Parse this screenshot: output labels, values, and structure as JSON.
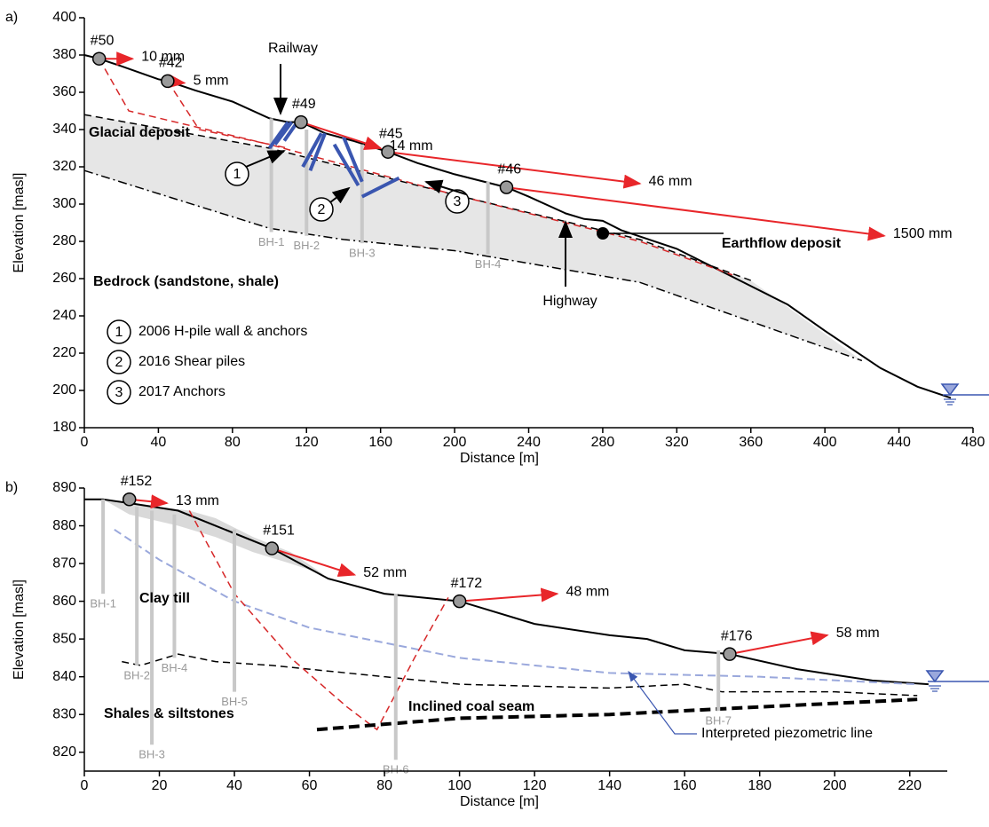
{
  "chart_data": [
    {
      "type": "cross-section",
      "panel": "a)",
      "xlabel": "Distance [m]",
      "ylabel": "Elevation [masl]",
      "xlim": [
        0,
        480
      ],
      "ylim": [
        180,
        400
      ],
      "xticks": [
        0,
        40,
        80,
        120,
        160,
        200,
        240,
        280,
        320,
        360,
        400,
        440,
        480
      ],
      "yticks": [
        180,
        200,
        220,
        240,
        260,
        280,
        300,
        320,
        340,
        360,
        380,
        400
      ],
      "lines": [
        {
          "style": "deposit",
          "color": "#e6e6e6",
          "x": [
            0,
            100,
            200,
            300,
            360,
            420,
            300,
            200,
            140,
            100,
            0
          ],
          "values": [
            348,
            330,
            305,
            281,
            259,
            216,
            258,
            275,
            281,
            287,
            318
          ]
        },
        {
          "style": "ground",
          "color": "#000000",
          "x": [
            0,
            8,
            20,
            40,
            45,
            60,
            80,
            100,
            110,
            117,
            130,
            145,
            164,
            180,
            200,
            228,
            240,
            260,
            270,
            280,
            290,
            320,
            350,
            380,
            400,
            430,
            450,
            468
          ],
          "values": [
            380,
            378,
            374,
            367,
            366,
            361,
            355,
            346,
            344,
            344,
            338,
            334,
            328,
            322,
            316,
            309,
            304,
            295,
            292,
            291,
            286,
            276,
            261,
            246,
            232,
            212,
            202,
            196
          ]
        },
        {
          "style": "dashed",
          "color": "#000000",
          "x": [
            0,
            100,
            200,
            300,
            360
          ],
          "values": [
            348,
            330,
            305,
            281,
            259
          ]
        },
        {
          "style": "dashdot",
          "color": "#000000",
          "x": [
            0,
            100,
            140,
            200,
            300,
            420
          ],
          "values": [
            318,
            287,
            281,
            275,
            258,
            216
          ]
        },
        {
          "style": "slip",
          "color": "#d62728",
          "x": [
            8,
            24,
            100,
            200,
            300,
            350
          ],
          "values": [
            378,
            350,
            332,
            305,
            280,
            262
          ]
        },
        {
          "style": "slip",
          "color": "#d62728",
          "x": [
            45,
            62,
            110
          ],
          "values": [
            366,
            340,
            330
          ]
        }
      ],
      "boreholes": [
        {
          "label": "BH-1",
          "x": 101,
          "top": 346,
          "bottom": 285
        },
        {
          "label": "BH-2",
          "x": 120,
          "top": 340,
          "bottom": 283
        },
        {
          "label": "BH-3",
          "x": 150,
          "top": 332,
          "bottom": 279
        },
        {
          "label": "BH-4",
          "x": 218,
          "top": 312,
          "bottom": 273
        }
      ],
      "monitoring_points": [
        {
          "label": "#50",
          "x": 8,
          "y": 378,
          "displacement": "10 mm",
          "arrow_x": 26,
          "arrow_y": 378
        },
        {
          "label": "#42",
          "x": 45,
          "y": 366,
          "displacement": "5 mm",
          "arrow_x": 54,
          "arrow_y": 365
        },
        {
          "label": "#49",
          "x": 117,
          "y": 344,
          "displacement": "14 mm",
          "arrow_x": 160,
          "arrow_y": 330
        },
        {
          "label": "#45",
          "x": 164,
          "y": 328,
          "displacement": "46 mm",
          "arrow_x": 300,
          "arrow_y": 311
        },
        {
          "label": "#46",
          "x": 228,
          "y": 309,
          "displacement": "1500 mm",
          "arrow_x": 432,
          "arrow_y": 283
        }
      ],
      "labels": [
        "Railway",
        "Highway",
        "Glacial deposit",
        "Bedrock (sandstone, shale)",
        "Earthflow deposit"
      ],
      "legend_items": [
        {
          "number": "1",
          "text": "2006 H-pile wall & anchors"
        },
        {
          "number": "2",
          "text": "2016 Shear piles"
        },
        {
          "number": "3",
          "text": "2017 Anchors"
        }
      ]
    },
    {
      "type": "cross-section",
      "panel": "b)",
      "xlabel": "Distance [m]",
      "ylabel": "Elevation [masl]",
      "xlim": [
        0,
        230
      ],
      "ylim": [
        815,
        890
      ],
      "xticks": [
        0,
        20,
        40,
        60,
        80,
        100,
        120,
        140,
        160,
        180,
        200,
        220
      ],
      "yticks": [
        820,
        830,
        840,
        850,
        860,
        870,
        880,
        890
      ],
      "lines": [
        {
          "style": "deposit",
          "color": "#d9d9d9",
          "x": [
            5,
            12,
            20,
            28,
            35,
            45,
            55,
            64,
            55,
            45,
            35,
            25,
            12,
            5
          ],
          "values": [
            887,
            886,
            885,
            884,
            882,
            877,
            873,
            867,
            870,
            873,
            877,
            880,
            883,
            887
          ]
        },
        {
          "style": "ground",
          "color": "#000000",
          "x": [
            0,
            5,
            12,
            25,
            35,
            50,
            65,
            80,
            100,
            120,
            140,
            150,
            160,
            172,
            190,
            210,
            225
          ],
          "values": [
            887,
            887,
            886,
            884,
            880,
            874,
            866,
            862,
            860,
            854,
            851,
            850,
            847,
            846,
            842,
            839,
            838
          ]
        },
        {
          "style": "piezometric",
          "color": "#9aa8dc",
          "x": [
            8,
            20,
            40,
            60,
            80,
            100,
            140,
            180,
            222
          ],
          "values": [
            879,
            871,
            860,
            853,
            849,
            845,
            841,
            840,
            838
          ]
        },
        {
          "style": "dashed",
          "color": "#000000",
          "x": [
            10,
            15,
            25,
            35,
            50,
            80,
            100,
            140,
            160,
            170,
            200,
            222
          ],
          "values": [
            844,
            843,
            846,
            844,
            843,
            840,
            838,
            837,
            838,
            836,
            836,
            835
          ]
        },
        {
          "style": "slip",
          "color": "#d62728",
          "x": [
            28,
            40,
            55,
            70,
            78,
            88,
            97
          ],
          "values": [
            884,
            862,
            845,
            832,
            826,
            845,
            861
          ]
        },
        {
          "style": "coal",
          "color": "#000000",
          "x": [
            62,
            100,
            140,
            180,
            222
          ],
          "values": [
            826,
            829,
            830,
            832,
            834
          ]
        }
      ],
      "boreholes": [
        {
          "label": "BH-1",
          "x": 5,
          "top": 887,
          "bottom": 862
        },
        {
          "label": "BH-2",
          "x": 14,
          "top": 885,
          "bottom": 843
        },
        {
          "label": "BH-3",
          "x": 18,
          "top": 884,
          "bottom": 822
        },
        {
          "label": "BH-4",
          "x": 24,
          "top": 883,
          "bottom": 845
        },
        {
          "label": "BH-5",
          "x": 40,
          "top": 879,
          "bottom": 836
        },
        {
          "label": "BH-6",
          "x": 83,
          "top": 862,
          "bottom": 818
        },
        {
          "label": "BH-7",
          "x": 169,
          "top": 847,
          "bottom": 831
        }
      ],
      "monitoring_points": [
        {
          "label": "#152",
          "x": 12,
          "y": 887,
          "displacement": "13 mm",
          "arrow_x": 22,
          "arrow_y": 886
        },
        {
          "label": "#151",
          "x": 50,
          "y": 874,
          "displacement": "52 mm",
          "arrow_x": 72,
          "arrow_y": 867
        },
        {
          "label": "#172",
          "x": 100,
          "y": 860,
          "displacement": "48 mm",
          "arrow_x": 126,
          "arrow_y": 862
        },
        {
          "label": "#176",
          "x": 172,
          "y": 846,
          "displacement": "58 mm",
          "arrow_x": 198,
          "arrow_y": 851
        }
      ],
      "labels": [
        "Clay till",
        "Shales & siltstones",
        "Inclined coal seam",
        "Interpreted piezometric line"
      ]
    }
  ]
}
